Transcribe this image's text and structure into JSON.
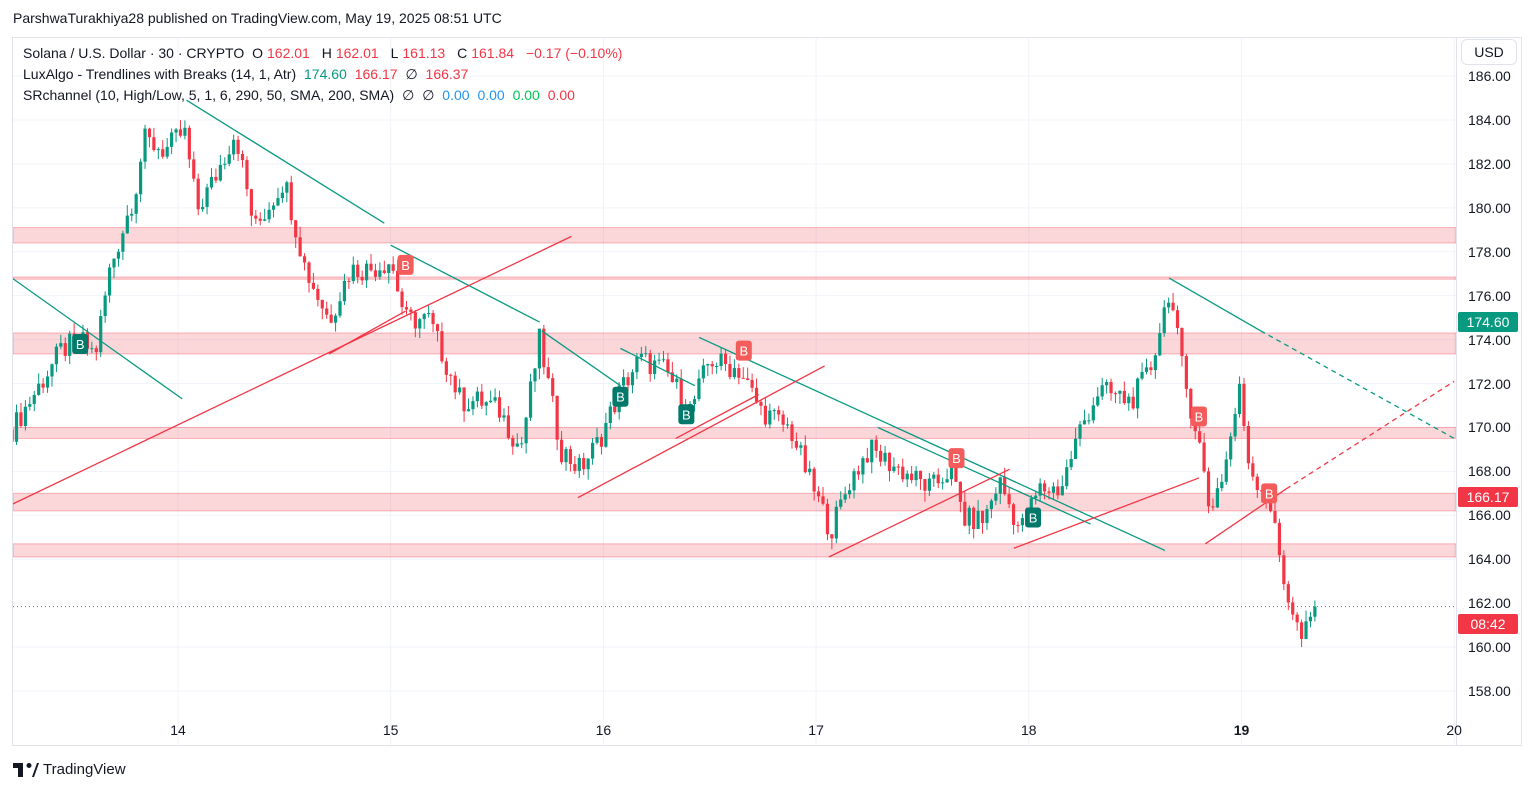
{
  "publisher_line": "ParshwaTurakhiya28 published on TradingView.com, May 19, 2025 08:51 UTC",
  "legend": {
    "symbol": "Solana / U.S. Dollar · 30 · CRYPTO",
    "o_label": "O",
    "o": "162.01",
    "h_label": "H",
    "h": "162.01",
    "l_label": "L",
    "l": "161.13",
    "c_label": "C",
    "c": "161.84",
    "change": "−0.17 (−0.10%)",
    "ind1": "LuxAlgo - Trendlines with Breaks (14, 1, Atr)",
    "ind1_v1": "174.60",
    "ind1_v2": "166.17",
    "ind1_v3": "∅",
    "ind1_v4": "166.37",
    "ind2": "SRchannel (10, High/Low, 5, 1, 6, 290, 50, SMA, 200, SMA)",
    "ind2_v1": "∅",
    "ind2_v2": "∅",
    "ind2_v3": "0.00",
    "ind2_v4": "0.00",
    "ind2_v5": "0.00",
    "ind2_v6": "0.00"
  },
  "currency": "USD",
  "price_tags": {
    "upper": "174.60",
    "lower": "166.17",
    "countdown": "08:42"
  },
  "brand": "TradingView",
  "colors": {
    "up": "#089981",
    "down": "#f23645",
    "zone": "#f23645"
  },
  "chart_data": {
    "type": "candlestick",
    "interval": "30m",
    "x_ticks": [
      {
        "day": 14,
        "label": "14"
      },
      {
        "day": 15,
        "label": "15"
      },
      {
        "day": 16,
        "label": "16"
      },
      {
        "day": 17,
        "label": "17"
      },
      {
        "day": 18,
        "label": "18"
      },
      {
        "day": 19,
        "label": "19"
      },
      {
        "day": 20,
        "label": "20"
      }
    ],
    "y_ticks": [
      "186.00",
      "184.00",
      "182.00",
      "180.00",
      "178.00",
      "176.00",
      "174.00",
      "172.00",
      "170.00",
      "168.00",
      "166.00",
      "164.00",
      "162.00",
      "160.00",
      "158.00"
    ],
    "ylim": [
      156.8,
      187.3
    ],
    "xlim": [
      13.22,
      20.0
    ],
    "last_price": 161.84,
    "price_path": [
      [
        13.22,
        169.9
      ],
      [
        13.45,
        173.5
      ],
      [
        13.54,
        174
      ],
      [
        13.61,
        173.3
      ],
      [
        13.68,
        177.2
      ],
      [
        13.8,
        180.8
      ],
      [
        13.84,
        183.1
      ],
      [
        13.94,
        182.6
      ],
      [
        14.03,
        183.5
      ],
      [
        14.09,
        179.9
      ],
      [
        14.17,
        181.3
      ],
      [
        14.27,
        183.5
      ],
      [
        14.36,
        179
      ],
      [
        14.5,
        181.3
      ],
      [
        14.6,
        177.2
      ],
      [
        14.71,
        174.9
      ],
      [
        14.81,
        177.2
      ],
      [
        14.9,
        177.2
      ],
      [
        15.0,
        177.6
      ],
      [
        15.07,
        174.9
      ],
      [
        15.18,
        174.9
      ],
      [
        15.33,
        171.2
      ],
      [
        15.42,
        171.2
      ],
      [
        15.51,
        170.8
      ],
      [
        15.61,
        169
      ],
      [
        15.7,
        174
      ],
      [
        15.8,
        169
      ],
      [
        15.89,
        168.1
      ],
      [
        15.98,
        169.4
      ],
      [
        16.08,
        171.7
      ],
      [
        16.17,
        173.1
      ],
      [
        16.29,
        172.6
      ],
      [
        16.41,
        170.8
      ],
      [
        16.5,
        173.1
      ],
      [
        16.64,
        172.6
      ],
      [
        16.74,
        170.8
      ],
      [
        16.88,
        169.9
      ],
      [
        16.97,
        167.6
      ],
      [
        17.07,
        165.3
      ],
      [
        17.16,
        167.6
      ],
      [
        17.25,
        169
      ],
      [
        17.39,
        168.1
      ],
      [
        17.54,
        167.2
      ],
      [
        17.63,
        168.1
      ],
      [
        17.7,
        165.8
      ],
      [
        17.79,
        165.8
      ],
      [
        17.86,
        167.6
      ],
      [
        17.96,
        165.3
      ],
      [
        18.05,
        167.2
      ],
      [
        18.15,
        167.2
      ],
      [
        18.24,
        169.9
      ],
      [
        18.33,
        171.7
      ],
      [
        18.48,
        171.2
      ],
      [
        18.57,
        172.6
      ],
      [
        18.66,
        176.3
      ],
      [
        18.73,
        172.2
      ],
      [
        18.8,
        169.4
      ],
      [
        18.85,
        166.2
      ],
      [
        18.92,
        168.1
      ],
      [
        18.99,
        171.7
      ],
      [
        19.04,
        168.1
      ],
      [
        19.13,
        166.7
      ],
      [
        19.2,
        163
      ],
      [
        19.28,
        160.3
      ],
      [
        19.36,
        161.8
      ]
    ],
    "sr_zones": [
      [
        178.4,
        179.1
      ],
      [
        176.75,
        176.85
      ],
      [
        173.35,
        174.3
      ],
      [
        169.5,
        170.0
      ],
      [
        166.2,
        167.0
      ],
      [
        164.1,
        164.7
      ]
    ],
    "down_trendlines": [
      [
        [
          13.22,
          176.8
        ],
        [
          14.02,
          171.3
        ]
      ],
      [
        [
          14.04,
          184.9
        ],
        [
          14.97,
          179.3
        ]
      ],
      [
        [
          15.0,
          178.3
        ],
        [
          15.7,
          174.8
        ]
      ],
      [
        [
          15.71,
          174.4
        ],
        [
          16.08,
          171.9
        ]
      ],
      [
        [
          16.08,
          173.6
        ],
        [
          16.43,
          171.9
        ]
      ],
      [
        [
          16.45,
          174.1
        ],
        [
          18.64,
          164.4
        ]
      ],
      [
        [
          17.29,
          170.0
        ],
        [
          18.29,
          165.6
        ]
      ],
      [
        [
          18.66,
          176.8
        ],
        [
          19.09,
          174.4
        ]
      ]
    ],
    "down_trendline_projection": [
      [
        19.09,
        174.4
      ],
      [
        20.0,
        169.5
      ]
    ],
    "up_trendlines": [
      [
        [
          13.22,
          166.5
        ],
        [
          15.85,
          178.7
        ]
      ],
      [
        [
          14.71,
          173.35
        ],
        [
          15.07,
          175.3
        ]
      ],
      [
        [
          15.88,
          166.8
        ],
        [
          17.04,
          172.8
        ]
      ],
      [
        [
          16.34,
          169.5
        ],
        [
          16.73,
          171.5
        ]
      ],
      [
        [
          17.06,
          164.1
        ],
        [
          17.91,
          168.1
        ]
      ],
      [
        [
          17.93,
          164.5
        ],
        [
          18.8,
          167.7
        ]
      ],
      [
        [
          18.83,
          164.7
        ],
        [
          19.21,
          167.2
        ]
      ]
    ],
    "up_trendline_projection": [
      [
        19.21,
        167.2
      ],
      [
        20.0,
        172.1
      ]
    ],
    "break_labels": {
      "text": "B",
      "bullish": [
        [
          13.54,
          173.8
        ],
        [
          16.08,
          171.4
        ],
        [
          16.39,
          170.6
        ],
        [
          18.02,
          165.9
        ]
      ],
      "bearish": [
        [
          15.07,
          177.4
        ],
        [
          16.66,
          173.5
        ],
        [
          17.66,
          168.6
        ],
        [
          18.8,
          170.5
        ],
        [
          19.13,
          167.0
        ]
      ]
    }
  }
}
